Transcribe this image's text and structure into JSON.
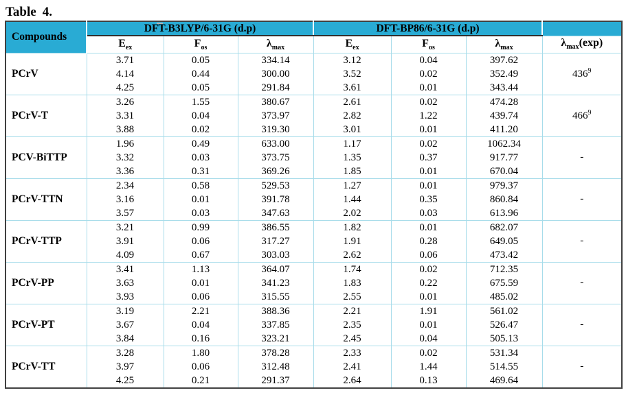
{
  "title": {
    "label": "Table",
    "number": "4."
  },
  "colors": {
    "header_bg": "#29abd4",
    "grid_line": "#a7dcea",
    "outer_border": "#404040",
    "text": "#000000",
    "stray_mark": "#b0b0b0"
  },
  "table": {
    "compounds_header": "Compounds",
    "group_headers": [
      "DFT-B3LYP/6-31G (d.p)",
      "DFT-BP86/6-31G (d.p)"
    ],
    "sub_headers": [
      {
        "base": "E",
        "sub": "ex"
      },
      {
        "base": "F",
        "sub": "os"
      },
      {
        "base": "λ",
        "sub": "max"
      }
    ],
    "exp_header": {
      "base": "λ",
      "sub": "max",
      "suffix": "(exp)"
    },
    "rows": [
      {
        "compound": "PCrV",
        "b3lyp": {
          "eex": [
            "3.71",
            "4.14",
            "4.25"
          ],
          "fos": [
            "0.05",
            "0.44",
            "0.05"
          ],
          "lmax": [
            "334.14",
            "300.00",
            "291.84"
          ]
        },
        "bp86": {
          "eex": [
            "3.12",
            "3.52",
            "3.61"
          ],
          "fos": [
            "0.04",
            "0.02",
            "0.01"
          ],
          "lmax": [
            "397.62",
            "352.49",
            "343.44"
          ]
        },
        "exp": "436",
        "exp_sup": "9"
      },
      {
        "compound": "PCrV-T",
        "b3lyp": {
          "eex": [
            "3.26",
            "3.31",
            "3.88"
          ],
          "fos": [
            "1.55",
            "0.04",
            "0.02"
          ],
          "lmax": [
            "380.67",
            "373.97",
            "319.30"
          ]
        },
        "bp86": {
          "eex": [
            "2.61",
            "2.82",
            "3.01"
          ],
          "fos": [
            "0.02",
            "1.22",
            "0.01"
          ],
          "lmax": [
            "474.28",
            "439.74",
            "411.20"
          ]
        },
        "exp": "466",
        "exp_sup": "9"
      },
      {
        "compound": "PCV-BiTTP",
        "b3lyp": {
          "eex": [
            "1.96",
            "3.32",
            "3.36"
          ],
          "fos": [
            "0.49",
            "0.03",
            "0.31"
          ],
          "lmax": [
            "633.00",
            "373.75",
            "369.26"
          ]
        },
        "bp86": {
          "eex": [
            "1.17",
            "1.35",
            "1.85"
          ],
          "fos": [
            "0.02",
            "0.37",
            "0.01"
          ],
          "lmax": [
            "1062.34",
            "917.77",
            "670.04"
          ]
        },
        "exp": "-",
        "exp_sup": ""
      },
      {
        "compound": "PCrV-TTN",
        "b3lyp": {
          "eex": [
            "2.34",
            "3.16",
            "3.57"
          ],
          "fos": [
            "0.58",
            "0.01",
            "0.03"
          ],
          "lmax": [
            "529.53",
            "391.78",
            "347.63"
          ]
        },
        "bp86": {
          "eex": [
            "1.27",
            "1.44",
            "2.02"
          ],
          "fos": [
            "0.01",
            "0.35",
            "0.03"
          ],
          "lmax": [
            "979.37",
            "860.84",
            "613.96"
          ]
        },
        "exp": "-",
        "exp_sup": ""
      },
      {
        "compound": "PCrV-TTP",
        "b3lyp": {
          "eex": [
            "3.21",
            "3.91",
            "4.09"
          ],
          "fos": [
            "0.99",
            "0.06",
            "0.67"
          ],
          "lmax": [
            "386.55",
            "317.27",
            "303.03"
          ]
        },
        "bp86": {
          "eex": [
            "1.82",
            "1.91",
            "2.62"
          ],
          "fos": [
            "0.01",
            "0.28",
            "0.06"
          ],
          "lmax": [
            "682.07",
            "649.05",
            "473.42"
          ]
        },
        "exp": "-",
        "exp_sup": ""
      },
      {
        "compound": "PCrV-PP",
        "b3lyp": {
          "eex": [
            "3.41",
            "3.63",
            "3.93"
          ],
          "fos": [
            "1.13",
            "0.01",
            "0.06"
          ],
          "lmax": [
            "364.07",
            "341.23",
            "315.55"
          ]
        },
        "bp86": {
          "eex": [
            "1.74",
            "1.83",
            "2.55"
          ],
          "fos": [
            "0.02",
            "0.22",
            "0.01"
          ],
          "lmax": [
            "712.35",
            "675.59",
            "485.02"
          ]
        },
        "exp": "-",
        "exp_sup": ""
      },
      {
        "compound": "PCrV-PT",
        "b3lyp": {
          "eex": [
            "3.19",
            "3.67",
            "3.84"
          ],
          "fos": [
            "2.21",
            "0.04",
            "0.16"
          ],
          "lmax": [
            "388.36",
            "337.85",
            "323.21"
          ]
        },
        "bp86": {
          "eex": [
            "2.21",
            "2.35",
            "2.45"
          ],
          "fos": [
            "1.91",
            "0.01",
            "0.04"
          ],
          "lmax": [
            "561.02",
            "526.47",
            "505.13"
          ]
        },
        "exp": "-",
        "exp_sup": ""
      },
      {
        "compound": "PCrV-TT",
        "b3lyp": {
          "eex": [
            "3.28",
            "3.97",
            "4.25"
          ],
          "fos": [
            "1.80",
            "0.06",
            "0.21"
          ],
          "lmax": [
            "378.28",
            "312.48",
            "291.37"
          ]
        },
        "bp86": {
          "eex": [
            "2.33",
            "2.41",
            "2.64"
          ],
          "fos": [
            "0.02",
            "1.44",
            "0.13"
          ],
          "lmax": [
            "531.34",
            "514.55",
            "469.64"
          ]
        },
        "exp": "-",
        "exp_sup": ""
      }
    ]
  }
}
